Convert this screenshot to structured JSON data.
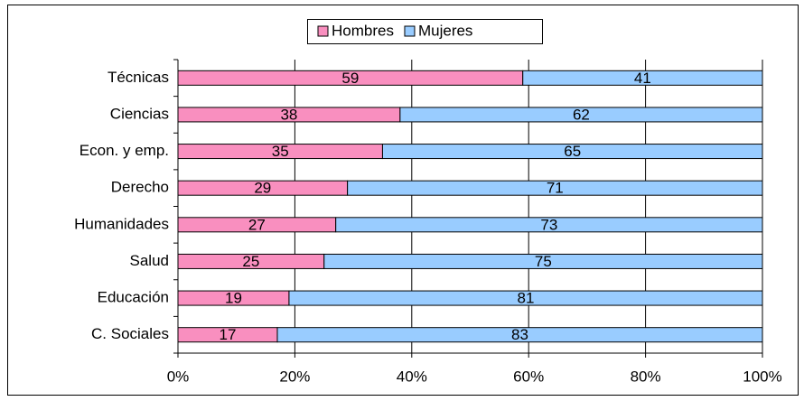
{
  "chart_data": {
    "type": "stacked-barh",
    "categories": [
      "Técnicas",
      "Ciencias",
      "Econ. y emp.",
      "Derecho",
      "Humanidades",
      "Salud",
      "Educación",
      "C. Sociales"
    ],
    "series": [
      {
        "name": "Hombres",
        "color": "#f98fbf",
        "values": [
          59,
          38,
          35,
          29,
          27,
          25,
          19,
          17
        ]
      },
      {
        "name": "Mujeres",
        "color": "#99ccff",
        "values": [
          41,
          62,
          65,
          71,
          73,
          75,
          81,
          83
        ]
      }
    ],
    "xlim": [
      0,
      100
    ],
    "xticks": [
      {
        "value": 0,
        "label": "0%"
      },
      {
        "value": 20,
        "label": "20%"
      },
      {
        "value": 40,
        "label": "40%"
      },
      {
        "value": 60,
        "label": "60%"
      },
      {
        "value": 80,
        "label": "80%"
      },
      {
        "value": 100,
        "label": "100%"
      }
    ],
    "grid": true,
    "legend": "top"
  }
}
